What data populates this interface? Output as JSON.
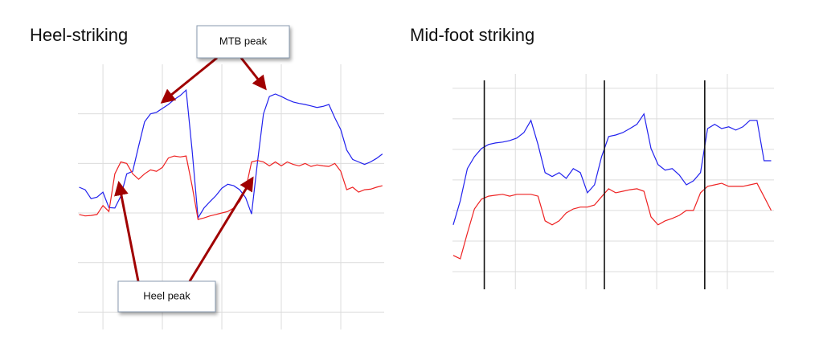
{
  "chart_data": [
    {
      "type": "line",
      "title": "Heel-striking",
      "x": [
        -0.4,
        -0.3,
        -0.2,
        -0.1,
        0,
        0.1,
        0.2,
        0.3,
        0.4,
        0.5,
        0.6,
        0.7,
        0.8,
        0.9,
        1,
        1.1,
        1.2,
        1.3,
        1.4,
        1.5,
        1.6,
        1.7,
        1.8,
        1.9,
        2,
        2.1,
        2.2,
        2.3,
        2.4,
        2.5,
        2.6,
        2.7,
        2.8,
        2.9,
        3,
        3.1,
        3.2,
        3.3,
        3.4,
        3.5,
        3.6,
        3.7,
        3.8,
        3.9,
        4,
        4.1,
        4.2,
        4.3,
        4.4,
        4.5,
        4.6,
        4.7
      ],
      "series": [
        {
          "color": "#2222ee",
          "values": [
            2.52,
            2.47,
            2.29,
            2.32,
            2.42,
            2.11,
            2.1,
            2.34,
            2.79,
            2.84,
            3.35,
            3.84,
            4.0,
            4.03,
            4.11,
            4.19,
            4.29,
            4.37,
            4.48,
            3.27,
            1.9,
            2.1,
            2.23,
            2.35,
            2.5,
            2.58,
            2.55,
            2.47,
            2.31,
            1.98,
            3.03,
            4.0,
            4.35,
            4.4,
            4.35,
            4.29,
            4.24,
            4.21,
            4.19,
            4.16,
            4.13,
            4.15,
            4.19,
            3.92,
            3.68,
            3.27,
            3.08,
            3.03,
            2.98,
            3.03,
            3.1,
            3.19
          ]
        },
        {
          "color": "#ee2222",
          "values": [
            1.97,
            1.94,
            1.95,
            1.97,
            2.15,
            2.03,
            2.79,
            3.03,
            3.0,
            2.79,
            2.68,
            2.79,
            2.87,
            2.84,
            2.92,
            3.11,
            3.15,
            3.13,
            3.15,
            2.55,
            1.87,
            1.9,
            1.94,
            1.97,
            2.0,
            2.03,
            2.1,
            2.23,
            2.47,
            3.03,
            3.06,
            3.03,
            2.95,
            3.03,
            2.95,
            3.03,
            2.98,
            2.95,
            3.0,
            2.94,
            2.97,
            2.95,
            2.94,
            3.0,
            2.84,
            2.47,
            2.52,
            2.42,
            2.47,
            2.48,
            2.52,
            2.55
          ]
        }
      ],
      "xlim": [
        -0.42,
        4.73
      ],
      "xticks": [
        0,
        1,
        2,
        3,
        4
      ],
      "ylim": [
        -0.35,
        5
      ],
      "yticks": [
        0,
        1,
        2,
        3,
        4
      ],
      "grid": true,
      "annotations": [
        "MTB peak",
        "Heel peak"
      ]
    },
    {
      "type": "line",
      "title": "Mid-foot striking",
      "x": [
        -0.88,
        -0.78,
        -0.68,
        -0.58,
        -0.48,
        -0.38,
        -0.28,
        -0.18,
        -0.08,
        0.02,
        0.12,
        0.22,
        0.32,
        0.42,
        0.52,
        0.62,
        0.72,
        0.82,
        0.92,
        1.02,
        1.12,
        1.22,
        1.32,
        1.42,
        1.52,
        1.62,
        1.72,
        1.82,
        1.92,
        2.02,
        2.12,
        2.22,
        2.32,
        2.42,
        2.52,
        2.62,
        2.72,
        2.82,
        2.92,
        3.02,
        3.12,
        3.22,
        3.32,
        3.42,
        3.52,
        3.62
      ],
      "series": [
        {
          "color": "#2222ee",
          "values": [
            1.53,
            2.32,
            3.37,
            3.76,
            4.03,
            4.16,
            4.21,
            4.24,
            4.29,
            4.37,
            4.55,
            4.95,
            4.16,
            3.24,
            3.11,
            3.24,
            3.05,
            3.37,
            3.24,
            2.58,
            2.84,
            3.76,
            4.42,
            4.47,
            4.55,
            4.68,
            4.82,
            5.16,
            4.03,
            3.5,
            3.32,
            3.37,
            3.16,
            2.84,
            2.97,
            3.24,
            4.68,
            4.82,
            4.68,
            4.74,
            4.63,
            4.74,
            4.95,
            4.95,
            3.63,
            3.63
          ]
        },
        {
          "color": "#ee2222",
          "values": [
            0.53,
            0.42,
            1.26,
            2.05,
            2.37,
            2.47,
            2.5,
            2.53,
            2.47,
            2.53,
            2.53,
            2.53,
            2.47,
            1.66,
            1.53,
            1.66,
            1.92,
            2.05,
            2.11,
            2.11,
            2.18,
            2.45,
            2.71,
            2.58,
            2.63,
            2.68,
            2.71,
            2.63,
            1.79,
            1.53,
            1.66,
            1.74,
            1.84,
            2.0,
            2.0,
            2.58,
            2.79,
            2.84,
            2.89,
            2.79,
            2.79,
            2.79,
            2.84,
            2.89,
            2.45,
            2.0
          ]
        }
      ],
      "xlim": [
        -0.89,
        3.66
      ],
      "xticks": [
        0,
        1,
        2,
        3
      ],
      "ylim": [
        -0.58,
        6.47
      ],
      "yticks": [
        0,
        1,
        2,
        3,
        4,
        5,
        6
      ],
      "grid": true,
      "vlines": [
        -0.44,
        1.26,
        2.68
      ]
    }
  ]
}
